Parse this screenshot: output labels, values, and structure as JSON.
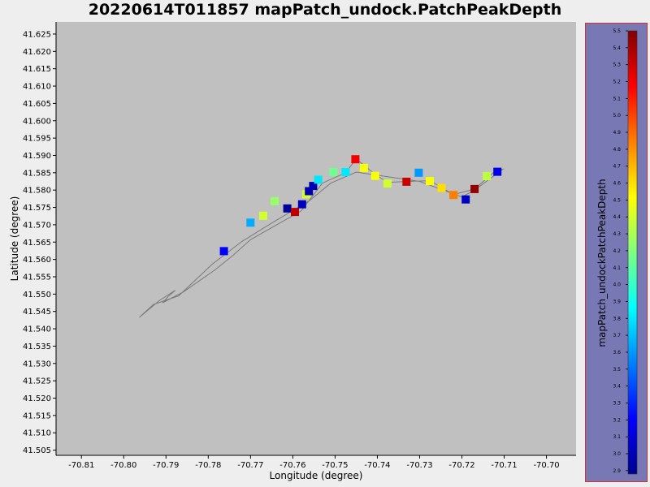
{
  "chart_data": {
    "type": "scatter",
    "title": "20220614T011857 mapPatch_undock.PatchPeakDepth",
    "xlabel": "Longitude (degree)",
    "ylabel": "Latitude (degree)",
    "xlim": [
      -70.816,
      -70.693
    ],
    "ylim": [
      41.5035,
      41.6285
    ],
    "x_ticks": [
      -70.81,
      -70.8,
      -70.79,
      -70.78,
      -70.77,
      -70.76,
      -70.75,
      -70.74,
      -70.73,
      -70.72,
      -70.71,
      -70.7
    ],
    "x_tick_labels": [
      "-70.81",
      "-70.80",
      "-70.79",
      "-70.78",
      "-70.77",
      "-70.76",
      "-70.75",
      "-70.74",
      "-70.73",
      "-70.72",
      "-70.71",
      "-70.70"
    ],
    "y_ticks": [
      41.505,
      41.51,
      41.515,
      41.52,
      41.525,
      41.53,
      41.535,
      41.54,
      41.545,
      41.55,
      41.555,
      41.56,
      41.565,
      41.57,
      41.575,
      41.58,
      41.585,
      41.59,
      41.595,
      41.6,
      41.605,
      41.61,
      41.615,
      41.62,
      41.625
    ],
    "y_tick_labels": [
      "41.505",
      "41.510",
      "41.515",
      "41.520",
      "41.525",
      "41.530",
      "41.535",
      "41.540",
      "41.545",
      "41.550",
      "41.555",
      "41.560",
      "41.565",
      "41.570",
      "41.575",
      "41.580",
      "41.585",
      "41.590",
      "41.595",
      "41.600",
      "41.605",
      "41.610",
      "41.615",
      "41.620",
      "41.625"
    ],
    "grid": false,
    "colorbar": {
      "label": "mapPatch_undockPatchPeakDepth",
      "min": 2.88,
      "max": 5.5,
      "ticks": [
        2.9,
        3.0,
        3.1,
        3.2,
        3.3,
        3.4,
        3.5,
        3.6,
        3.7,
        3.8,
        3.9,
        4.0,
        4.1,
        4.2,
        4.3,
        4.4,
        4.5,
        4.6,
        4.7,
        4.8,
        4.9,
        5.0,
        5.1,
        5.2,
        5.3,
        5.4,
        5.5
      ],
      "tick_labels": [
        "2.9",
        "3.0",
        "3.1",
        "3.2",
        "3.3",
        "3.4",
        "3.5",
        "3.6",
        "3.7",
        "3.8",
        "3.9",
        "4.0",
        "4.1",
        "4.2",
        "4.3",
        "4.4",
        "4.5",
        "4.6",
        "4.7",
        "4.8",
        "4.9",
        "5.0",
        "5.1",
        "5.2",
        "5.3",
        "5.4",
        "5.5"
      ],
      "colormap": "jet"
    },
    "track": [
      [
        -70.7963,
        41.5433
      ],
      [
        -70.7915,
        41.5482
      ],
      [
        -70.7878,
        41.5511
      ],
      [
        -70.7895,
        41.5493
      ],
      [
        -70.7908,
        41.5475
      ],
      [
        -70.7858,
        41.5507
      ],
      [
        -70.7785,
        41.5569
      ],
      [
        -70.7742,
        41.5611
      ],
      [
        -70.77,
        41.5657
      ],
      [
        -70.7625,
        41.5709
      ],
      [
        -70.758,
        41.574
      ],
      [
        -70.7555,
        41.578
      ],
      [
        -70.753,
        41.582
      ],
      [
        -70.7475,
        41.585
      ],
      [
        -70.745,
        41.589
      ],
      [
        -70.7405,
        41.5845
      ],
      [
        -70.7375,
        41.5822
      ],
      [
        -70.733,
        41.5825
      ],
      [
        -70.7275,
        41.5827
      ],
      [
        -70.722,
        41.5787
      ],
      [
        -70.717,
        41.5803
      ],
      [
        -70.7118,
        41.5858
      ],
      [
        -70.7103,
        41.586
      ],
      [
        -70.717,
        41.58
      ],
      [
        -70.72,
        41.578
      ],
      [
        -70.73,
        41.5825
      ],
      [
        -70.745,
        41.5852
      ],
      [
        -70.751,
        41.582
      ],
      [
        -70.756,
        41.577
      ],
      [
        -70.765,
        41.5705
      ],
      [
        -70.772,
        41.5652
      ],
      [
        -70.779,
        41.5587
      ],
      [
        -70.787,
        41.5495
      ],
      [
        -70.793,
        41.547
      ],
      [
        -70.7963,
        41.5433
      ]
    ],
    "points": [
      {
        "lon": -70.7763,
        "lat": 41.5624,
        "value": 3.2
      },
      {
        "lon": -70.77,
        "lat": 41.5706,
        "value": 3.65
      },
      {
        "lon": -70.767,
        "lat": 41.5726,
        "value": 4.4
      },
      {
        "lon": -70.7643,
        "lat": 41.5768,
        "value": 4.25
      },
      {
        "lon": -70.7613,
        "lat": 41.5747,
        "value": 2.95
      },
      {
        "lon": -70.7595,
        "lat": 41.5737,
        "value": 5.35
      },
      {
        "lon": -70.7578,
        "lat": 41.5759,
        "value": 3.05
      },
      {
        "lon": -70.7568,
        "lat": 41.5788,
        "value": 4.4
      },
      {
        "lon": -70.7562,
        "lat": 41.5797,
        "value": 3.0
      },
      {
        "lon": -70.7552,
        "lat": 41.5812,
        "value": 3.0
      },
      {
        "lon": -70.754,
        "lat": 41.583,
        "value": 3.8
      },
      {
        "lon": -70.7504,
        "lat": 41.5852,
        "value": 4.15
      },
      {
        "lon": -70.7475,
        "lat": 41.5852,
        "value": 3.8
      },
      {
        "lon": -70.7452,
        "lat": 41.5889,
        "value": 5.2
      },
      {
        "lon": -70.7432,
        "lat": 41.5864,
        "value": 4.5
      },
      {
        "lon": -70.7405,
        "lat": 41.5841,
        "value": 4.5
      },
      {
        "lon": -70.7376,
        "lat": 41.5819,
        "value": 4.4
      },
      {
        "lon": -70.7331,
        "lat": 41.5824,
        "value": 5.3
      },
      {
        "lon": -70.7302,
        "lat": 41.585,
        "value": 3.6
      },
      {
        "lon": -70.7276,
        "lat": 41.5826,
        "value": 4.5
      },
      {
        "lon": -70.7248,
        "lat": 41.5806,
        "value": 4.6
      },
      {
        "lon": -70.722,
        "lat": 41.5786,
        "value": 4.85
      },
      {
        "lon": -70.7191,
        "lat": 41.5773,
        "value": 3.05
      },
      {
        "lon": -70.717,
        "lat": 41.5803,
        "value": 5.45
      },
      {
        "lon": -70.7141,
        "lat": 41.584,
        "value": 4.35
      },
      {
        "lon": -70.7116,
        "lat": 41.5853,
        "value": 3.15
      }
    ]
  }
}
